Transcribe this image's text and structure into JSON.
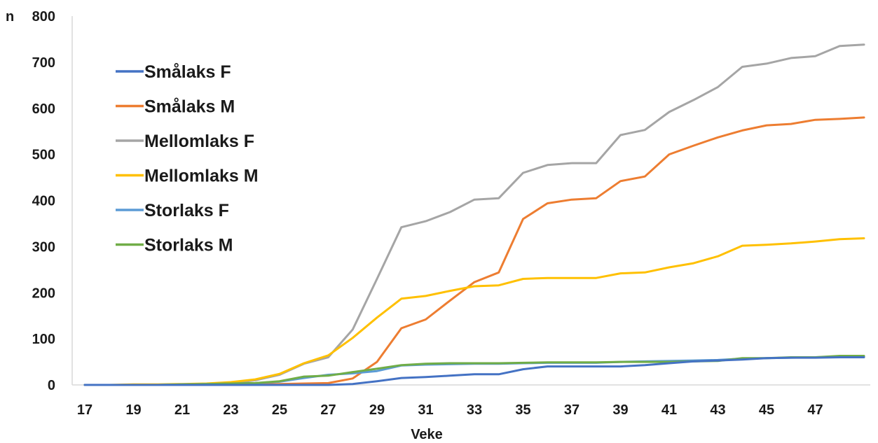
{
  "chart_data": {
    "type": "line",
    "xlabel": "Veke",
    "ylabel": "n",
    "xlim": [
      17,
      49
    ],
    "ylim": [
      0,
      800
    ],
    "x_ticks": [
      17,
      19,
      21,
      23,
      25,
      27,
      29,
      31,
      33,
      35,
      37,
      39,
      41,
      43,
      45,
      47
    ],
    "y_ticks": [
      0,
      100,
      200,
      300,
      400,
      500,
      600,
      700,
      800
    ],
    "grid": false,
    "legend_position": "left",
    "x": [
      17,
      18,
      19,
      20,
      21,
      22,
      23,
      24,
      25,
      26,
      27,
      28,
      29,
      30,
      31,
      32,
      33,
      34,
      35,
      36,
      37,
      38,
      39,
      40,
      41,
      42,
      43,
      44,
      45,
      46,
      47,
      48,
      49
    ],
    "series": [
      {
        "name": "Smålaks F",
        "color": "#4472c4",
        "values": [
          0,
          0,
          0,
          0,
          0,
          0,
          0,
          0,
          0,
          0,
          0,
          2,
          8,
          15,
          17,
          20,
          23,
          23,
          34,
          40,
          40,
          40,
          40,
          43,
          47,
          51,
          53,
          55,
          58,
          59,
          59,
          60,
          60
        ]
      },
      {
        "name": "Smålaks M",
        "color": "#ed7d31",
        "values": [
          0,
          0,
          0,
          0,
          0,
          0,
          0,
          1,
          2,
          3,
          4,
          14,
          50,
          123,
          142,
          183,
          223,
          244,
          360,
          394,
          402,
          405,
          442,
          452,
          500,
          519,
          537,
          552,
          563,
          566,
          575,
          577,
          580
        ]
      },
      {
        "name": "Mellomlaks F",
        "color": "#a5a5a5",
        "values": [
          0,
          0,
          0,
          0,
          1,
          2,
          4,
          10,
          22,
          46,
          60,
          120,
          230,
          342,
          355,
          375,
          402,
          405,
          460,
          477,
          481,
          481,
          542,
          553,
          592,
          618,
          646,
          690,
          697,
          709,
          713,
          735,
          738
        ]
      },
      {
        "name": "Mellomlaks M",
        "color": "#ffc000",
        "values": [
          0,
          0,
          1,
          1,
          2,
          3,
          6,
          12,
          24,
          47,
          64,
          102,
          146,
          187,
          193,
          204,
          214,
          216,
          230,
          232,
          232,
          232,
          242,
          244,
          255,
          264,
          279,
          302,
          304,
          307,
          311,
          316,
          318
        ]
      },
      {
        "name": "Storlaks F",
        "color": "#5b9bd5",
        "values": [
          0,
          0,
          0,
          0,
          1,
          2,
          3,
          4,
          7,
          15,
          22,
          25,
          30,
          42,
          44,
          45,
          46,
          46,
          47,
          48,
          48,
          48,
          50,
          51,
          52,
          53,
          54,
          57,
          58,
          59,
          60,
          61,
          62
        ]
      },
      {
        "name": "Storlaks M",
        "color": "#70ad47",
        "values": [
          0,
          0,
          0,
          0,
          1,
          2,
          3,
          4,
          8,
          18,
          20,
          28,
          35,
          43,
          46,
          47,
          47,
          47,
          48,
          49,
          49,
          49,
          50,
          50,
          50,
          51,
          52,
          58,
          58,
          60,
          60,
          63,
          63
        ]
      }
    ]
  }
}
